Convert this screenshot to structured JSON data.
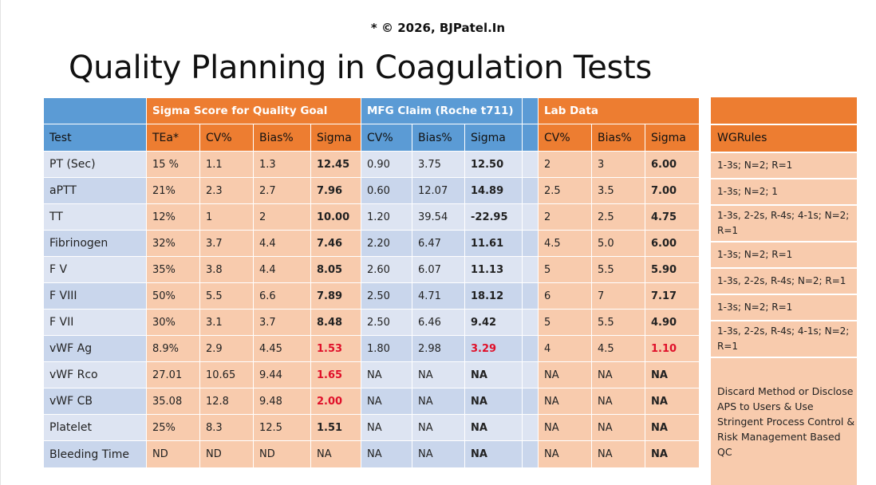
{
  "copyright": "* © 2026, BJPatel.In",
  "title": "Quality Planning in Coagulation Tests",
  "groups": {
    "sigma_goal": "Sigma Score for Quality Goal",
    "mfg_claim": "MFG Claim (Roche t711)",
    "lab_data": "Lab Data"
  },
  "headers": [
    "Test",
    "TEa*",
    "CV%",
    "Bias%",
    "Sigma",
    "CV%",
    "Bias%",
    "Sigma",
    "CV%",
    "Bias%",
    "Sigma"
  ],
  "wg_header": "WGRules",
  "rows": [
    {
      "test": "PT (Sec)",
      "tea": "15 %",
      "cv": "1.1",
      "bias": "1.3",
      "sigma": "12.45",
      "mcv": "0.90",
      "mbias": "3.75",
      "msigma": "12.50",
      "lcv": "2",
      "lbias": "3",
      "lsigma": "6.00"
    },
    {
      "test": "aPTT",
      "tea": "21%",
      "cv": "2.3",
      "bias": "2.7",
      "sigma": "7.96",
      "mcv": "0.60",
      "mbias": "12.07",
      "msigma": "14.89",
      "lcv": "2.5",
      "lbias": "3.5",
      "lsigma": "7.00"
    },
    {
      "test": "TT",
      "tea": "12%",
      "cv": "1",
      "bias": "2",
      "sigma": "10.00",
      "mcv": "1.20",
      "mbias": "39.54",
      "msigma": "-22.95",
      "lcv": "2",
      "lbias": "2.5",
      "lsigma": "4.75"
    },
    {
      "test": "Fibrinogen",
      "tea": "32%",
      "cv": "3.7",
      "bias": "4.4",
      "sigma": "7.46",
      "mcv": "2.20",
      "mbias": "6.47",
      "msigma": "11.61",
      "lcv": "4.5",
      "lbias": "5.0",
      "lsigma": "6.00"
    },
    {
      "test": "F V",
      "tea": "35%",
      "cv": "3.8",
      "bias": "4.4",
      "sigma": "8.05",
      "mcv": "2.60",
      "mbias": "6.07",
      "msigma": "11.13",
      "lcv": "5",
      "lbias": "5.5",
      "lsigma": "5.90"
    },
    {
      "test": "F VIII",
      "tea": "50%",
      "cv": "5.5",
      "bias": "6.6",
      "sigma": "7.89",
      "mcv": "2.50",
      "mbias": "4.71",
      "msigma": "18.12",
      "lcv": "6",
      "lbias": "7",
      "lsigma": "7.17"
    },
    {
      "test": "F VII",
      "tea": "30%",
      "cv": "3.1",
      "bias": "3.7",
      "sigma": "8.48",
      "mcv": "2.50",
      "mbias": "6.46",
      "msigma": "9.42",
      "lcv": "5",
      "lbias": "5.5",
      "lsigma": "4.90"
    },
    {
      "test": "vWF Ag",
      "tea": "8.9%",
      "cv": "2.9",
      "bias": "4.45",
      "sigma": "1.53",
      "mcv": "1.80",
      "mbias": "2.98",
      "msigma": "3.29",
      "lcv": "4",
      "lbias": "4.5",
      "lsigma": "1.10"
    },
    {
      "test": "vWF Rco",
      "tea": "27.01",
      "cv": "10.65",
      "bias": "9.44",
      "sigma": "1.65",
      "mcv": "NA",
      "mbias": "NA",
      "msigma": "NA",
      "lcv": "NA",
      "lbias": "NA",
      "lsigma": "NA"
    },
    {
      "test": "vWF CB",
      "tea": "35.08",
      "cv": "12.8",
      "bias": "9.48",
      "sigma": "2.00",
      "mcv": "NA",
      "mbias": "NA",
      "msigma": "NA",
      "lcv": "NA",
      "lbias": "NA",
      "lsigma": "NA"
    },
    {
      "test": "Platelet",
      "tea": "25%",
      "cv": "8.3",
      "bias": "12.5",
      "sigma": "1.51",
      "mcv": "NA",
      "mbias": "NA",
      "msigma": "NA",
      "lcv": "NA",
      "lbias": "NA",
      "lsigma": "NA"
    },
    {
      "test": "Bleeding Time",
      "tea": "ND",
      "cv": "ND",
      "bias": "ND",
      "sigma": "NA",
      "mcv": "NA",
      "mbias": "NA",
      "msigma": "NA",
      "lcv": "NA",
      "lbias": "NA",
      "lsigma": "NA"
    }
  ],
  "wg_rules": [
    "1-3s; N=2; R=1",
    "1-3s; N=2; 1",
    "1-3s, 2-2s, R-4s; 4-1s; N=2; R=1",
    "1-3s; N=2; R=1",
    "1-3s, 2-2s, R-4s; N=2; R=1",
    "1-3s; N=2; R=1",
    "1-3s, 2-2s, R-4s; 4-1s; N=2; R=1",
    "Discard Method or Disclose APS to Users & Use Stringent Process Control & Risk Management Based QC"
  ],
  "colors": {
    "blue": "#5b9bd5",
    "orange": "#ed7d31",
    "peach": "#f8cbad",
    "light_blue": "#dde4f2",
    "red": "#e0102a"
  }
}
